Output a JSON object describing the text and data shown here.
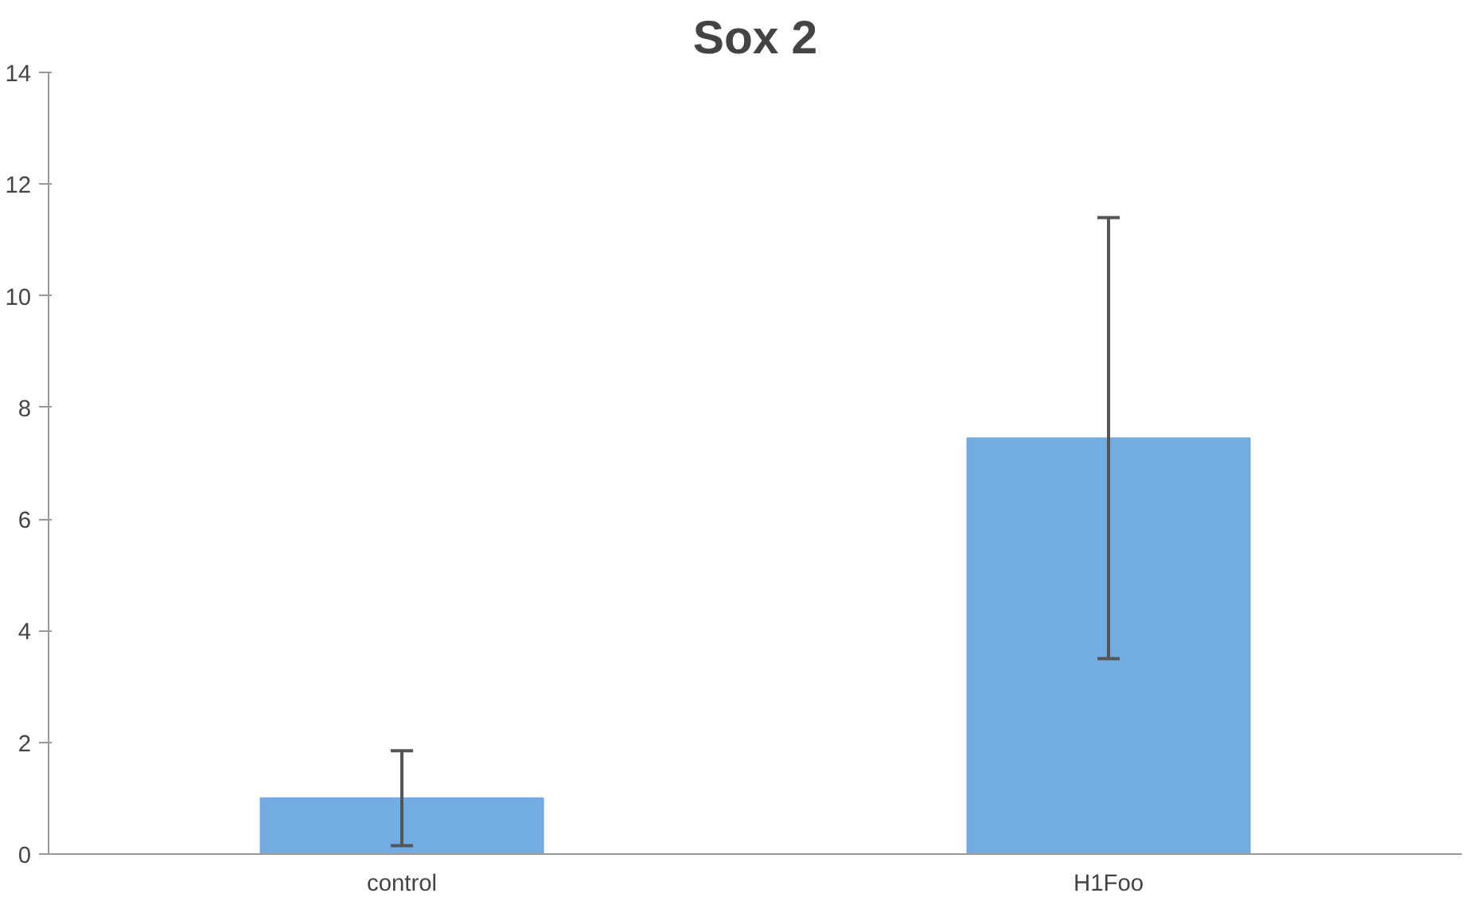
{
  "chart_data": {
    "type": "bar",
    "title": "Sox 2",
    "categories": [
      "control",
      "H1Foo"
    ],
    "values": [
      1.0,
      7.45
    ],
    "errors": [
      0.85,
      3.95
    ],
    "color": "#73abe3",
    "ylim": [
      0,
      14
    ],
    "yticks": [
      0,
      2,
      4,
      6,
      8,
      10,
      12,
      14
    ],
    "grid": false
  }
}
